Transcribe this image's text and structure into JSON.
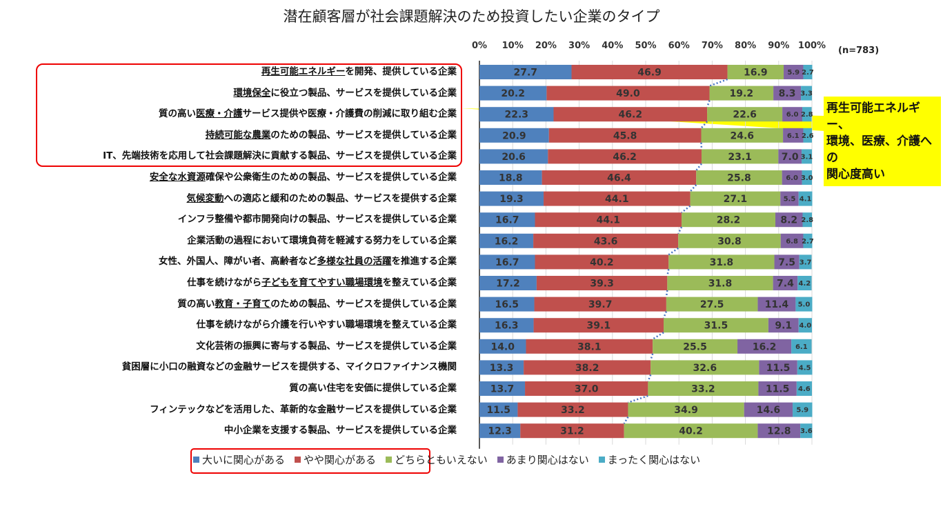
{
  "chart_data": {
    "type": "bar",
    "orientation": "horizontal",
    "stacked": true,
    "title": "潜在顧客層が社会課題解決のため投資したい企業のタイプ",
    "sample_note": "(n=783)",
    "x_ticks": [
      "0%",
      "10%",
      "20%",
      "30%",
      "40%",
      "50%",
      "60%",
      "70%",
      "80%",
      "90%",
      "100%"
    ],
    "xlim": [
      0,
      100
    ],
    "grid": true,
    "legend_position": "bottom",
    "series": [
      {
        "name": "大いに関心がある",
        "color": "#4f81bd"
      },
      {
        "name": "やや関心がある",
        "color": "#c0504d"
      },
      {
        "name": "どちらともいえない",
        "color": "#9bbb59"
      },
      {
        "name": "あまり関心はない",
        "color": "#8064a2"
      },
      {
        "name": "まったく関心はない",
        "color": "#4bacc6"
      }
    ],
    "categories": [
      {
        "parts": [
          "",
          "再生可能エネルギー",
          "を開発、提供している企業"
        ],
        "values": [
          27.7,
          46.9,
          16.9,
          5.9,
          2.7
        ]
      },
      {
        "parts": [
          "",
          "環境保全",
          "に役立つ製品、サービスを提供している企業"
        ],
        "values": [
          20.2,
          49.0,
          19.2,
          8.3,
          3.3
        ]
      },
      {
        "parts": [
          "質の高い",
          "医療・介護",
          "サービス提供や医療・介護費の削減に取り組む企業"
        ],
        "values": [
          22.3,
          46.2,
          22.6,
          6.0,
          2.8
        ]
      },
      {
        "parts": [
          "",
          "持続可能な農業",
          "のための製品、サービスを提供している企業"
        ],
        "values": [
          20.9,
          45.8,
          24.6,
          6.1,
          2.6
        ]
      },
      {
        "parts": [
          "IT、先端技術を応用して社会課題解決に貢献する製品、サービスを提供している企業",
          "",
          ""
        ],
        "values": [
          20.6,
          46.2,
          23.1,
          7.0,
          3.1
        ]
      },
      {
        "parts": [
          "",
          "安全な水資源",
          "確保や公衆衛生のための製品、サービスを提供している企業"
        ],
        "values": [
          18.8,
          46.4,
          25.8,
          6.0,
          3.0
        ]
      },
      {
        "parts": [
          "",
          "気候変動",
          "への適応と緩和のための製品、サービスを提供する企業"
        ],
        "values": [
          19.3,
          44.1,
          27.1,
          5.5,
          4.1
        ]
      },
      {
        "parts": [
          "インフラ整備や都市開発向けの製品、サービスを提供している企業",
          "",
          ""
        ],
        "values": [
          16.7,
          44.1,
          28.2,
          8.2,
          2.8
        ]
      },
      {
        "parts": [
          "企業活動の過程において環境負荷を軽減する努力をしている企業",
          "",
          ""
        ],
        "values": [
          16.2,
          43.6,
          30.8,
          6.8,
          2.7
        ]
      },
      {
        "parts": [
          "女性、外国人、障がい者、高齢者など",
          "多様な社員の活躍",
          "を推進する企業"
        ],
        "values": [
          16.7,
          40.2,
          31.8,
          7.5,
          3.7
        ]
      },
      {
        "parts": [
          "仕事を続けながら",
          "子どもを育てやすい職場環境",
          "を整えている企業"
        ],
        "values": [
          17.2,
          39.3,
          31.8,
          7.4,
          4.2
        ]
      },
      {
        "parts": [
          "質の高い",
          "教育・子育て",
          "のための製品、サービスを提供している企業"
        ],
        "values": [
          16.5,
          39.7,
          27.5,
          11.4,
          5.0
        ]
      },
      {
        "parts": [
          "仕事を続けながら介護を行いやすい職場環境を整えている企業",
          "",
          ""
        ],
        "values": [
          16.3,
          39.1,
          31.5,
          9.1,
          4.0
        ]
      },
      {
        "parts": [
          "文化芸術の振興に寄与する製品、サービスを提供している企業",
          "",
          ""
        ],
        "values": [
          14.0,
          38.1,
          25.5,
          16.2,
          6.1
        ]
      },
      {
        "parts": [
          "貧困層に小口の融資などの金融サービスを提供する、マイクロファイナンス機関",
          "",
          ""
        ],
        "values": [
          13.3,
          38.2,
          32.6,
          11.5,
          4.5
        ]
      },
      {
        "parts": [
          "質の高い住宅を安価に提供している企業",
          "",
          ""
        ],
        "values": [
          13.7,
          37.0,
          33.2,
          11.5,
          4.6
        ]
      },
      {
        "parts": [
          "フィンテックなどを活用した、革新的な金融サービスを提供している企業",
          "",
          ""
        ],
        "values": [
          11.5,
          33.2,
          34.9,
          14.6,
          5.9
        ]
      },
      {
        "parts": [
          "中小企業を支援する製品、サービスを提供している企業",
          "",
          ""
        ],
        "values": [
          12.3,
          31.2,
          40.2,
          12.8,
          3.6
        ]
      }
    ],
    "callout": [
      "再生可能エネルギー、",
      "環境、医療、介護への",
      "関心度高い"
    ],
    "callout_color": "#ffff00",
    "highlight_color": "#ee0000"
  }
}
